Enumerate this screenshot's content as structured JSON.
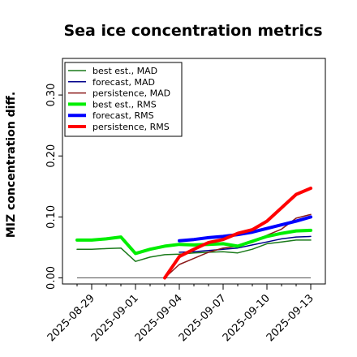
{
  "chart_data": {
    "type": "line",
    "title": "Sea ice concentration metrics",
    "xlabel": "",
    "ylabel": "MIZ concentration diff.",
    "ylim": [
      -0.01,
      0.36
    ],
    "yticks": [
      0.0,
      0.1,
      0.2,
      0.3
    ],
    "ytick_labels": [
      "0.00",
      "0.10",
      "0.20",
      "0.30"
    ],
    "xlim": [
      "2025-08-27",
      "2025-09-14"
    ],
    "xticks": [
      "2025-08-29",
      "2025-09-01",
      "2025-09-04",
      "2025-09-07",
      "2025-09-10",
      "2025-09-13"
    ],
    "highlight_xtick": "2025-09-04",
    "highlight_color": "#228b22",
    "grid": false,
    "legend_position": "upper-left",
    "baseline": 0.0,
    "series": [
      {
        "name": "best est., MAD",
        "color": "#1a7a1a",
        "width": "thin",
        "x": [
          "2025-08-28",
          "2025-08-29",
          "2025-08-30",
          "2025-08-31",
          "2025-09-01",
          "2025-09-02",
          "2025-09-03",
          "2025-09-04",
          "2025-09-05",
          "2025-09-06",
          "2025-09-07",
          "2025-09-08",
          "2025-09-09",
          "2025-09-10",
          "2025-09-11",
          "2025-09-12",
          "2025-09-13"
        ],
        "values": [
          0.047,
          0.047,
          0.048,
          0.049,
          0.027,
          0.034,
          0.038,
          0.039,
          0.041,
          0.042,
          0.043,
          0.041,
          0.047,
          0.056,
          0.059,
          0.062,
          0.062
        ]
      },
      {
        "name": "forecast,  MAD",
        "color": "#00008b",
        "width": "thin",
        "x": [
          "2025-09-04",
          "2025-09-05",
          "2025-09-06",
          "2025-09-07",
          "2025-09-08",
          "2025-09-09",
          "2025-09-10",
          "2025-09-11",
          "2025-09-12",
          "2025-09-13"
        ],
        "values": [
          0.042,
          0.043,
          0.045,
          0.047,
          0.049,
          0.054,
          0.059,
          0.064,
          0.067,
          0.068
        ]
      },
      {
        "name": "persistence, MAD",
        "color": "#8b1a1a",
        "width": "thin",
        "x": [
          "2025-09-03",
          "2025-09-04",
          "2025-09-05",
          "2025-09-06",
          "2025-09-07",
          "2025-09-08",
          "2025-09-09",
          "2025-09-10",
          "2025-09-11",
          "2025-09-12",
          "2025-09-13"
        ],
        "values": [
          0.0,
          0.022,
          0.032,
          0.042,
          0.049,
          0.052,
          0.058,
          0.07,
          0.08,
          0.098,
          0.104
        ]
      },
      {
        "name": "best est., RMS",
        "color": "#00ee00",
        "width": "thick",
        "x": [
          "2025-08-28",
          "2025-08-29",
          "2025-08-30",
          "2025-08-31",
          "2025-09-01",
          "2025-09-02",
          "2025-09-03",
          "2025-09-04",
          "2025-09-05",
          "2025-09-06",
          "2025-09-07",
          "2025-09-08",
          "2025-09-09",
          "2025-09-10",
          "2025-09-11",
          "2025-09-12",
          "2025-09-13"
        ],
        "values": [
          0.062,
          0.062,
          0.064,
          0.067,
          0.04,
          0.047,
          0.052,
          0.055,
          0.054,
          0.055,
          0.056,
          0.052,
          0.06,
          0.068,
          0.073,
          0.077,
          0.078
        ]
      },
      {
        "name": "forecast,  RMS",
        "color": "#0000ff",
        "width": "thick",
        "x": [
          "2025-09-04",
          "2025-09-05",
          "2025-09-06",
          "2025-09-07",
          "2025-09-08",
          "2025-09-09",
          "2025-09-10",
          "2025-09-11",
          "2025-09-12",
          "2025-09-13"
        ],
        "values": [
          0.061,
          0.063,
          0.066,
          0.068,
          0.071,
          0.075,
          0.081,
          0.087,
          0.093,
          0.1
        ]
      },
      {
        "name": "persistence, RMS",
        "color": "#ff0000",
        "width": "thick",
        "x": [
          "2025-09-03",
          "2025-09-04",
          "2025-09-05",
          "2025-09-06",
          "2025-09-07",
          "2025-09-08",
          "2025-09-09",
          "2025-09-10",
          "2025-09-11",
          "2025-09-12",
          "2025-09-13"
        ],
        "values": [
          0.0,
          0.035,
          0.047,
          0.058,
          0.063,
          0.073,
          0.079,
          0.093,
          0.115,
          0.137,
          0.147
        ]
      }
    ]
  }
}
